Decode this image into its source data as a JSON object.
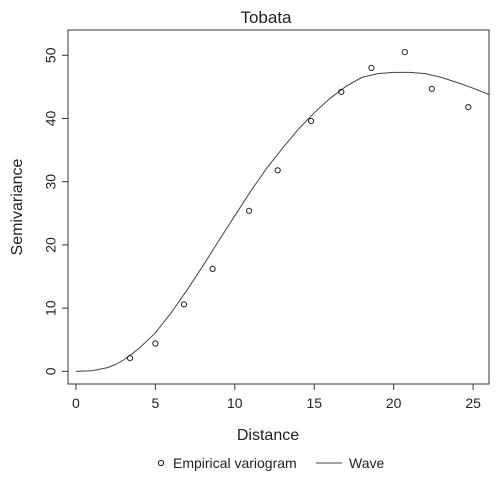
{
  "chart_data": {
    "type": "scatter",
    "title": "Tobata",
    "xlabel": "Distance",
    "ylabel": "Semivariance",
    "xlim": [
      -0.5,
      26
    ],
    "ylim": [
      -2,
      54
    ],
    "x_ticks": [
      0,
      5,
      10,
      15,
      20,
      25
    ],
    "y_ticks": [
      0,
      10,
      20,
      30,
      40,
      50
    ],
    "grid": false,
    "legend_position": "bottom",
    "series": [
      {
        "name": "Empirical variogram",
        "kind": "points",
        "x": [
          3.4,
          5.0,
          6.8,
          8.6,
          10.9,
          12.7,
          14.8,
          16.7,
          18.6,
          20.7,
          22.4,
          24.7
        ],
        "y": [
          2.1,
          4.4,
          10.6,
          16.2,
          25.4,
          31.8,
          39.6,
          44.2,
          48.0,
          50.5,
          44.7,
          41.8
        ]
      },
      {
        "name": "Wave",
        "kind": "line",
        "x": [
          0.0,
          1.0,
          2.0,
          2.5,
          3.0,
          3.5,
          4.0,
          5.0,
          6.0,
          7.0,
          8.0,
          9.0,
          10.0,
          11.0,
          12.0,
          13.0,
          14.0,
          15.0,
          16.0,
          17.0,
          18.0,
          19.0,
          20.0,
          21.0,
          22.0,
          23.0,
          24.0,
          25.0,
          26.0
        ],
        "y": [
          0.0,
          0.1,
          0.6,
          1.1,
          1.8,
          2.7,
          3.7,
          6.1,
          9.3,
          12.9,
          16.7,
          20.7,
          24.6,
          28.5,
          32.1,
          35.3,
          38.3,
          40.9,
          43.2,
          45.1,
          46.5,
          47.1,
          47.3,
          47.3,
          47.1,
          46.5,
          45.7,
          44.8,
          43.8
        ]
      }
    ]
  }
}
